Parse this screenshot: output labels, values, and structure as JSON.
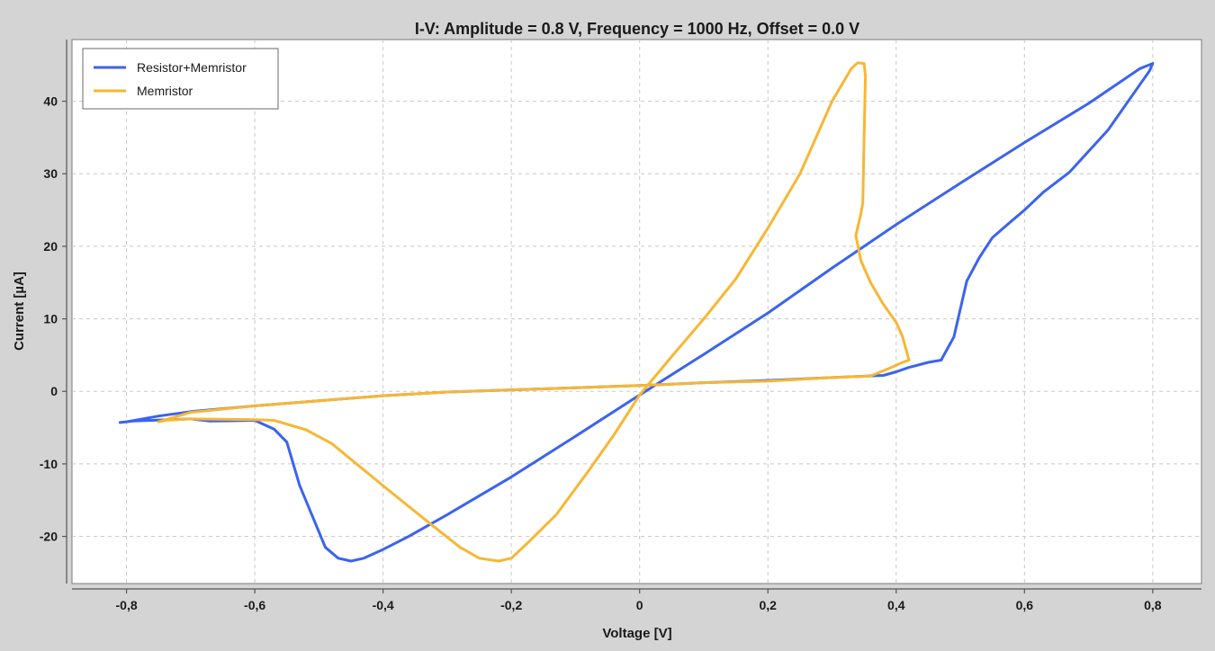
{
  "chart_data": {
    "type": "line",
    "title": "I-V: Amplitude = 0.8 V, Frequency = 1000 Hz, Offset = 0.0 V",
    "xlabel": "Voltage [V]",
    "ylabel": "Current [µA]",
    "xlim": [
      -0.885,
      0.876
    ],
    "ylim": [
      -26.5,
      48.5
    ],
    "x_ticks": [
      -0.8,
      -0.6,
      -0.4,
      -0.2,
      0,
      0.2,
      0.4,
      0.6,
      0.8
    ],
    "x_tick_labels": [
      "-0,8",
      "-0,6",
      "-0,4",
      "-0,2",
      "0",
      "0,2",
      "0,4",
      "0,6",
      "0,8"
    ],
    "y_ticks": [
      -20,
      -10,
      0,
      10,
      20,
      30,
      40
    ],
    "y_tick_labels": [
      "-20",
      "-10",
      "0",
      "10",
      "20",
      "30",
      "40"
    ],
    "grid": true,
    "legend_position": "top-left",
    "series": [
      {
        "name": "Resistor+Memristor",
        "color": "#3b63f0",
        "points": [
          [
            0,
            -0.5
          ],
          [
            0.1,
            5.1
          ],
          [
            0.2,
            10.8
          ],
          [
            0.3,
            17.0
          ],
          [
            0.4,
            23.0
          ],
          [
            0.5,
            28.7
          ],
          [
            0.6,
            34.3
          ],
          [
            0.7,
            39.7
          ],
          [
            0.78,
            44.5
          ],
          [
            0.8,
            45.2
          ],
          [
            0.795,
            44.2
          ],
          [
            0.73,
            36.0
          ],
          [
            0.67,
            30.2
          ],
          [
            0.63,
            27.5
          ],
          [
            0.6,
            25.0
          ],
          [
            0.58,
            23.5
          ],
          [
            0.55,
            21.2
          ],
          [
            0.53,
            18.5
          ],
          [
            0.51,
            15.2
          ],
          [
            0.49,
            7.5
          ],
          [
            0.47,
            4.3
          ],
          [
            0.45,
            4.0
          ],
          [
            0.42,
            3.3
          ],
          [
            0.4,
            2.7
          ],
          [
            0.38,
            2.2
          ],
          [
            0.3,
            1.9
          ],
          [
            0.2,
            1.5
          ],
          [
            0.1,
            1.2
          ],
          [
            0,
            0.8
          ],
          [
            -0.1,
            0.5
          ],
          [
            -0.2,
            0.2
          ],
          [
            -0.3,
            -0.1
          ],
          [
            -0.4,
            -0.6
          ],
          [
            -0.5,
            -1.3
          ],
          [
            -0.6,
            -2.0
          ],
          [
            -0.7,
            -2.8
          ],
          [
            -0.75,
            -3.4
          ],
          [
            -0.8,
            -4.2
          ],
          [
            -0.81,
            -4.3
          ],
          [
            -0.79,
            -4.1
          ],
          [
            -0.7,
            -3.8
          ],
          [
            -0.67,
            -4.1
          ],
          [
            -0.6,
            -4.0
          ],
          [
            -0.57,
            -5.2
          ],
          [
            -0.55,
            -7.0
          ],
          [
            -0.53,
            -13.0
          ],
          [
            -0.49,
            -21.5
          ],
          [
            -0.47,
            -23.0
          ],
          [
            -0.45,
            -23.4
          ],
          [
            -0.43,
            -23.0
          ],
          [
            -0.4,
            -21.8
          ],
          [
            -0.36,
            -20.0
          ],
          [
            -0.3,
            -17.0
          ],
          [
            -0.2,
            -11.8
          ],
          [
            -0.1,
            -6.2
          ],
          [
            0,
            -0.5
          ]
        ]
      },
      {
        "name": "Memristor",
        "color": "#f7b733",
        "points": [
          [
            0,
            -0.5
          ],
          [
            0.05,
            4.8
          ],
          [
            0.1,
            10.0
          ],
          [
            0.15,
            15.5
          ],
          [
            0.2,
            22.5
          ],
          [
            0.25,
            30.0
          ],
          [
            0.3,
            40.0
          ],
          [
            0.33,
            44.5
          ],
          [
            0.34,
            45.3
          ],
          [
            0.35,
            45.2
          ],
          [
            0.352,
            43.5
          ],
          [
            0.35,
            35.0
          ],
          [
            0.348,
            26.0
          ],
          [
            0.345,
            24.5
          ],
          [
            0.337,
            21.5
          ],
          [
            0.345,
            18.0
          ],
          [
            0.36,
            15.0
          ],
          [
            0.38,
            12.0
          ],
          [
            0.4,
            9.5
          ],
          [
            0.41,
            7.5
          ],
          [
            0.42,
            4.3
          ],
          [
            0.41,
            4.0
          ],
          [
            0.39,
            3.2
          ],
          [
            0.36,
            2.1
          ],
          [
            0.3,
            1.9
          ],
          [
            0.2,
            1.4
          ],
          [
            0.1,
            1.2
          ],
          [
            0,
            0.8
          ],
          [
            -0.1,
            0.5
          ],
          [
            -0.2,
            0.2
          ],
          [
            -0.3,
            -0.1
          ],
          [
            -0.4,
            -0.6
          ],
          [
            -0.5,
            -1.3
          ],
          [
            -0.6,
            -2.0
          ],
          [
            -0.7,
            -2.9
          ],
          [
            -0.75,
            -4.2
          ],
          [
            -0.74,
            -4.0
          ],
          [
            -0.7,
            -3.8
          ],
          [
            -0.6,
            -3.9
          ],
          [
            -0.57,
            -4.0
          ],
          [
            -0.52,
            -5.3
          ],
          [
            -0.48,
            -7.2
          ],
          [
            -0.4,
            -13.0
          ],
          [
            -0.33,
            -18.0
          ],
          [
            -0.28,
            -21.5
          ],
          [
            -0.25,
            -23.0
          ],
          [
            -0.22,
            -23.4
          ],
          [
            -0.2,
            -23.0
          ],
          [
            -0.17,
            -20.5
          ],
          [
            -0.13,
            -17.0
          ],
          [
            -0.08,
            -11.0
          ],
          [
            -0.04,
            -6.0
          ],
          [
            0,
            -0.5
          ]
        ]
      }
    ]
  }
}
